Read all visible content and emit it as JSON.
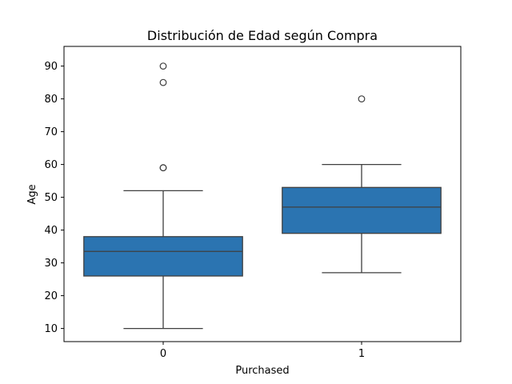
{
  "chart_data": {
    "type": "box",
    "title": "Distribución de Edad según Compra",
    "xlabel": "Purchased",
    "ylabel": "Age",
    "categories": [
      "0",
      "1"
    ],
    "ylim": [
      6,
      96
    ],
    "yticks": [
      10,
      20,
      30,
      40,
      50,
      60,
      70,
      80,
      90
    ],
    "grid": false,
    "legend": "none",
    "boxes": [
      {
        "category": "0",
        "whisker_low": 10,
        "q1": 26,
        "median": 33.5,
        "q3": 38,
        "whisker_high": 52,
        "outliers": [
          59,
          59,
          85,
          90
        ]
      },
      {
        "category": "1",
        "whisker_low": 27,
        "q1": 39,
        "median": 47,
        "q3": 53,
        "whisker_high": 60,
        "outliers": [
          80
        ]
      }
    ],
    "colors": {
      "box_fill": "#2b74b1",
      "line": "#3f3f3f",
      "axes": "#000000"
    }
  }
}
